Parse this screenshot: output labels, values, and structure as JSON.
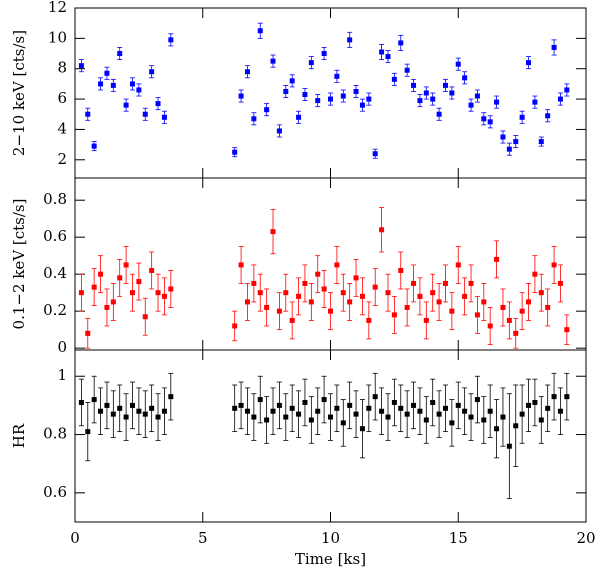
{
  "chart_data": [
    {
      "type": "scatter",
      "ylabel": "2−10 keV [cts/s]",
      "color": "#0000ff",
      "xlim": [
        0,
        20
      ],
      "xticks": [
        0,
        5,
        10,
        15,
        20
      ],
      "ylim": [
        0.8,
        12
      ],
      "yticks": [
        2,
        4,
        6,
        8,
        10,
        12
      ],
      "x": [
        0.25,
        0.5,
        0.75,
        1,
        1.25,
        1.5,
        1.75,
        2,
        2.25,
        2.5,
        2.75,
        3,
        3.25,
        3.5,
        3.75,
        6.25,
        6.5,
        6.75,
        7,
        7.25,
        7.5,
        7.75,
        8,
        8.25,
        8.5,
        8.75,
        9,
        9.25,
        9.5,
        9.75,
        10,
        10.25,
        10.5,
        10.75,
        11,
        11.25,
        11.5,
        11.75,
        12,
        12.25,
        12.5,
        12.75,
        13,
        13.25,
        13.5,
        13.75,
        14,
        14.25,
        14.5,
        14.75,
        15,
        15.25,
        15.5,
        15.75,
        16,
        16.25,
        16.5,
        16.75,
        17,
        17.25,
        17.5,
        17.75,
        18,
        18.25,
        18.5,
        18.75,
        19,
        19.25
      ],
      "values": [
        8.2,
        5.0,
        2.9,
        7.0,
        7.7,
        6.9,
        9.0,
        5.6,
        7.0,
        6.6,
        5.0,
        7.8,
        5.7,
        4.8,
        9.9,
        2.5,
        6.2,
        7.8,
        4.7,
        10.5,
        5.3,
        8.5,
        3.9,
        6.5,
        7.2,
        4.8,
        6.3,
        8.4,
        5.9,
        9.0,
        6.0,
        7.5,
        6.2,
        9.9,
        6.5,
        5.6,
        6.0,
        2.4,
        9.1,
        8.8,
        7.3,
        9.7,
        7.9,
        6.9,
        5.9,
        6.4,
        6.0,
        5.0,
        6.9,
        6.4,
        8.3,
        7.4,
        5.6,
        6.2,
        4.7,
        4.5,
        5.8,
        3.5,
        2.7,
        3.2,
        4.8,
        8.4,
        5.8,
        3.2,
        4.9,
        9.4,
        6.0,
        6.6
      ],
      "errors": [
        0.4,
        0.4,
        0.3,
        0.4,
        0.4,
        0.4,
        0.4,
        0.4,
        0.4,
        0.4,
        0.4,
        0.4,
        0.4,
        0.4,
        0.4,
        0.3,
        0.4,
        0.4,
        0.4,
        0.5,
        0.4,
        0.4,
        0.4,
        0.4,
        0.4,
        0.4,
        0.4,
        0.4,
        0.4,
        0.4,
        0.4,
        0.4,
        0.4,
        0.5,
        0.4,
        0.4,
        0.4,
        0.3,
        0.5,
        0.4,
        0.4,
        0.5,
        0.4,
        0.4,
        0.4,
        0.4,
        0.4,
        0.4,
        0.4,
        0.4,
        0.4,
        0.4,
        0.4,
        0.4,
        0.4,
        0.4,
        0.4,
        0.4,
        0.4,
        0.4,
        0.4,
        0.4,
        0.4,
        0.3,
        0.4,
        0.5,
        0.4,
        0.4
      ]
    },
    {
      "type": "scatter",
      "ylabel": "0.1−2 keV [cts/s]",
      "color": "#ff0000",
      "xlim": [
        0,
        20
      ],
      "xticks": [
        0,
        5,
        10,
        15,
        20
      ],
      "ylim": [
        -0.01,
        0.92
      ],
      "yticks": [
        0,
        0.2,
        0.4,
        0.6,
        0.8
      ],
      "x": [
        0.25,
        0.5,
        0.75,
        1,
        1.25,
        1.5,
        1.75,
        2,
        2.25,
        2.5,
        2.75,
        3,
        3.25,
        3.5,
        3.75,
        6.25,
        6.5,
        6.75,
        7,
        7.25,
        7.5,
        7.75,
        8,
        8.25,
        8.5,
        8.75,
        9,
        9.25,
        9.5,
        9.75,
        10,
        10.25,
        10.5,
        10.75,
        11,
        11.25,
        11.5,
        11.75,
        12,
        12.25,
        12.5,
        12.75,
        13,
        13.25,
        13.5,
        13.75,
        14,
        14.25,
        14.5,
        14.75,
        15,
        15.25,
        15.5,
        15.75,
        16,
        16.25,
        16.5,
        16.75,
        17,
        17.25,
        17.5,
        17.75,
        18,
        18.25,
        18.5,
        18.75,
        19,
        19.25
      ],
      "values": [
        0.3,
        0.08,
        0.33,
        0.4,
        0.22,
        0.25,
        0.38,
        0.45,
        0.3,
        0.36,
        0.17,
        0.42,
        0.3,
        0.28,
        0.32,
        0.12,
        0.45,
        0.25,
        0.35,
        0.3,
        0.22,
        0.63,
        0.2,
        0.3,
        0.15,
        0.28,
        0.35,
        0.25,
        0.4,
        0.32,
        0.2,
        0.45,
        0.3,
        0.25,
        0.38,
        0.28,
        0.15,
        0.33,
        0.64,
        0.3,
        0.18,
        0.42,
        0.22,
        0.35,
        0.28,
        0.15,
        0.3,
        0.25,
        0.35,
        0.2,
        0.45,
        0.28,
        0.35,
        0.18,
        0.25,
        0.12,
        0.48,
        0.22,
        0.15,
        0.08,
        0.2,
        0.25,
        0.4,
        0.3,
        0.22,
        0.45,
        0.35,
        0.1
      ],
      "errors": [
        0.1,
        0.08,
        0.1,
        0.1,
        0.1,
        0.1,
        0.1,
        0.1,
        0.1,
        0.1,
        0.1,
        0.1,
        0.1,
        0.1,
        0.1,
        0.08,
        0.1,
        0.1,
        0.1,
        0.1,
        0.1,
        0.12,
        0.1,
        0.1,
        0.1,
        0.1,
        0.1,
        0.1,
        0.1,
        0.1,
        0.1,
        0.1,
        0.1,
        0.1,
        0.1,
        0.1,
        0.1,
        0.1,
        0.12,
        0.1,
        0.1,
        0.1,
        0.1,
        0.1,
        0.1,
        0.1,
        0.1,
        0.1,
        0.1,
        0.1,
        0.1,
        0.1,
        0.1,
        0.1,
        0.1,
        0.1,
        0.1,
        0.1,
        0.1,
        0.08,
        0.1,
        0.1,
        0.1,
        0.1,
        0.1,
        0.1,
        0.1,
        0.08
      ]
    },
    {
      "type": "scatter",
      "ylabel": "HR",
      "xlabel": "Time [ks]",
      "color": "#000000",
      "xlim": [
        0,
        20
      ],
      "xticks": [
        0,
        5,
        10,
        15,
        20
      ],
      "ylim": [
        0.5,
        1.09
      ],
      "yticks": [
        0.6,
        0.8,
        1
      ],
      "x": [
        0.25,
        0.5,
        0.75,
        1,
        1.25,
        1.5,
        1.75,
        2,
        2.25,
        2.5,
        2.75,
        3,
        3.25,
        3.5,
        3.75,
        6.25,
        6.5,
        6.75,
        7,
        7.25,
        7.5,
        7.75,
        8,
        8.25,
        8.5,
        8.75,
        9,
        9.25,
        9.5,
        9.75,
        10,
        10.25,
        10.5,
        10.75,
        11,
        11.25,
        11.5,
        11.75,
        12,
        12.25,
        12.5,
        12.75,
        13,
        13.25,
        13.5,
        13.75,
        14,
        14.25,
        14.5,
        14.75,
        15,
        15.25,
        15.5,
        15.75,
        16,
        16.25,
        16.5,
        16.75,
        17,
        17.25,
        17.5,
        17.75,
        18,
        18.25,
        18.5,
        18.75,
        19,
        19.25
      ],
      "values": [
        0.91,
        0.81,
        0.92,
        0.88,
        0.9,
        0.87,
        0.89,
        0.86,
        0.9,
        0.88,
        0.87,
        0.89,
        0.86,
        0.88,
        0.93,
        0.89,
        0.9,
        0.88,
        0.86,
        0.92,
        0.85,
        0.88,
        0.9,
        0.86,
        0.89,
        0.87,
        0.91,
        0.85,
        0.88,
        0.92,
        0.86,
        0.89,
        0.84,
        0.9,
        0.87,
        0.82,
        0.89,
        0.93,
        0.88,
        0.86,
        0.91,
        0.89,
        0.87,
        0.9,
        0.88,
        0.85,
        0.91,
        0.87,
        0.89,
        0.84,
        0.9,
        0.88,
        0.86,
        0.92,
        0.85,
        0.88,
        0.82,
        0.86,
        0.76,
        0.83,
        0.87,
        0.9,
        0.91,
        0.85,
        0.89,
        0.93,
        0.88,
        0.93
      ],
      "errors": [
        0.08,
        0.1,
        0.08,
        0.08,
        0.08,
        0.08,
        0.08,
        0.08,
        0.08,
        0.08,
        0.08,
        0.08,
        0.08,
        0.08,
        0.08,
        0.08,
        0.08,
        0.08,
        0.08,
        0.08,
        0.08,
        0.08,
        0.08,
        0.08,
        0.08,
        0.08,
        0.08,
        0.08,
        0.08,
        0.08,
        0.08,
        0.08,
        0.08,
        0.08,
        0.08,
        0.1,
        0.08,
        0.08,
        0.08,
        0.08,
        0.08,
        0.08,
        0.08,
        0.08,
        0.08,
        0.08,
        0.08,
        0.08,
        0.08,
        0.08,
        0.08,
        0.08,
        0.08,
        0.08,
        0.08,
        0.09,
        0.1,
        0.1,
        0.18,
        0.14,
        0.1,
        0.09,
        0.08,
        0.08,
        0.08,
        0.08,
        0.08,
        0.08
      ]
    }
  ]
}
